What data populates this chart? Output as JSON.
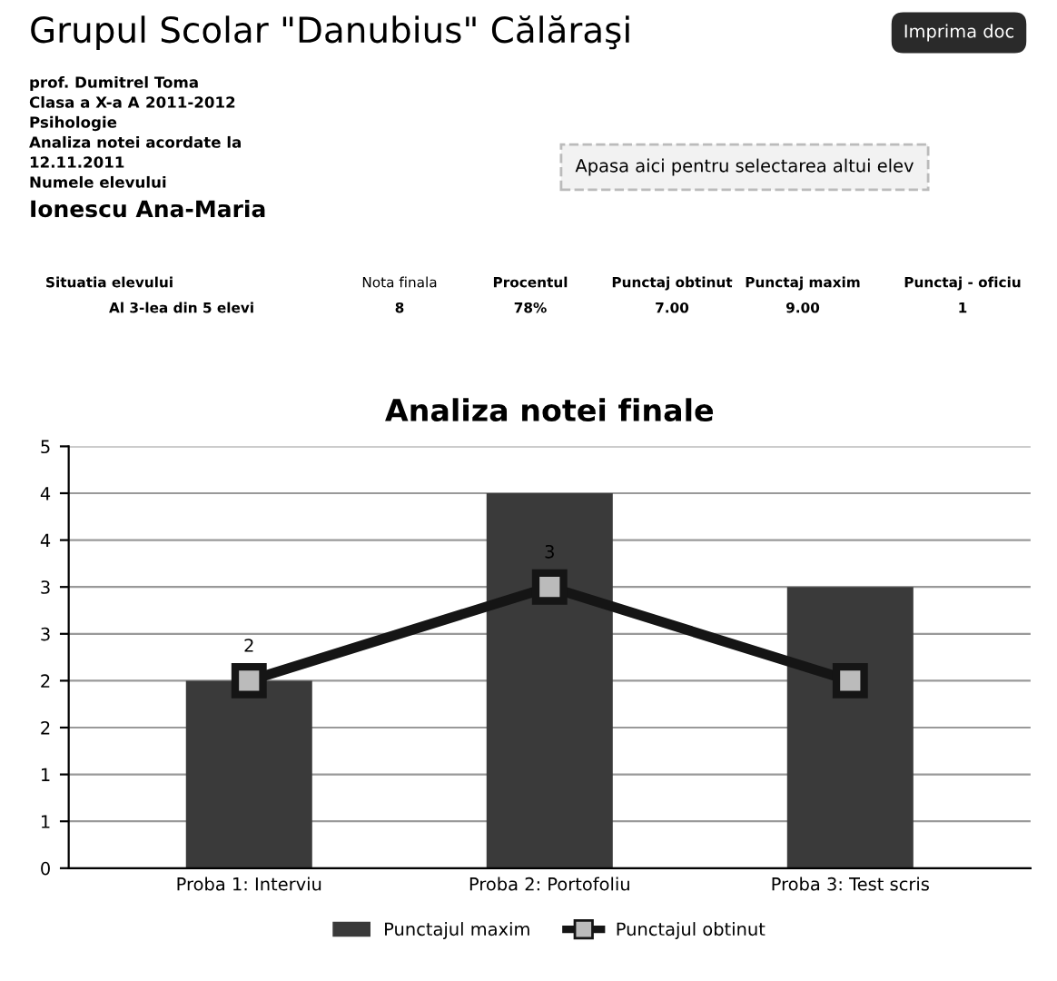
{
  "chart_data": {
    "type": "bar",
    "title": "Analiza notei finale",
    "categories": [
      "Proba 1: Interviu",
      "Proba 2: Portofoliu",
      "Proba 3: Test scris"
    ],
    "series": [
      {
        "name": "Punctajul maxim",
        "color": "#3a3a3a",
        "values": [
          2,
          4,
          3
        ]
      },
      {
        "name": "Punctajul obtinut",
        "type": "line",
        "color": "#151515",
        "values": [
          2,
          3,
          2
        ],
        "marker": "square",
        "line_style": "solid",
        "value_labels": [
          "2",
          "3",
          null
        ]
      }
    ],
    "ylim": [
      0,
      4.5
    ],
    "yticks": [
      0,
      {
        "value": 0.5,
        "label": "1"
      },
      1,
      {
        "value": 1.5,
        "label": "2"
      },
      2,
      {
        "value": 2.5,
        "label": "3"
      },
      3,
      {
        "value": 3.5,
        "label": "4"
      },
      4,
      {
        "value": 4.5,
        "label": "5"
      }
    ],
    "grid": "y",
    "legend": "bottom",
    "annotations": [
      "Grupul Scolar \"Danubius\" Călăraşi",
      "Imprima doc",
      "prof. Dumitrel Toma",
      "Clasa a X-a A",
      "2011-2012",
      "Psihologie",
      "Analiza notei acordate la",
      "12.11.2011",
      "Numele elevului",
      "Ionescu Ana-Maria",
      "Apasa aici pentru selectarea altui elev",
      "Situatia elevului",
      "Nota finala",
      "Procentul",
      "Punctaj obtinut",
      "Punctaj maxim",
      "Punctaj - oficiu",
      "Al 3-lea din 5 elevi",
      "8",
      "78%",
      "7.00",
      "9.00",
      "1"
    ]
  }
}
